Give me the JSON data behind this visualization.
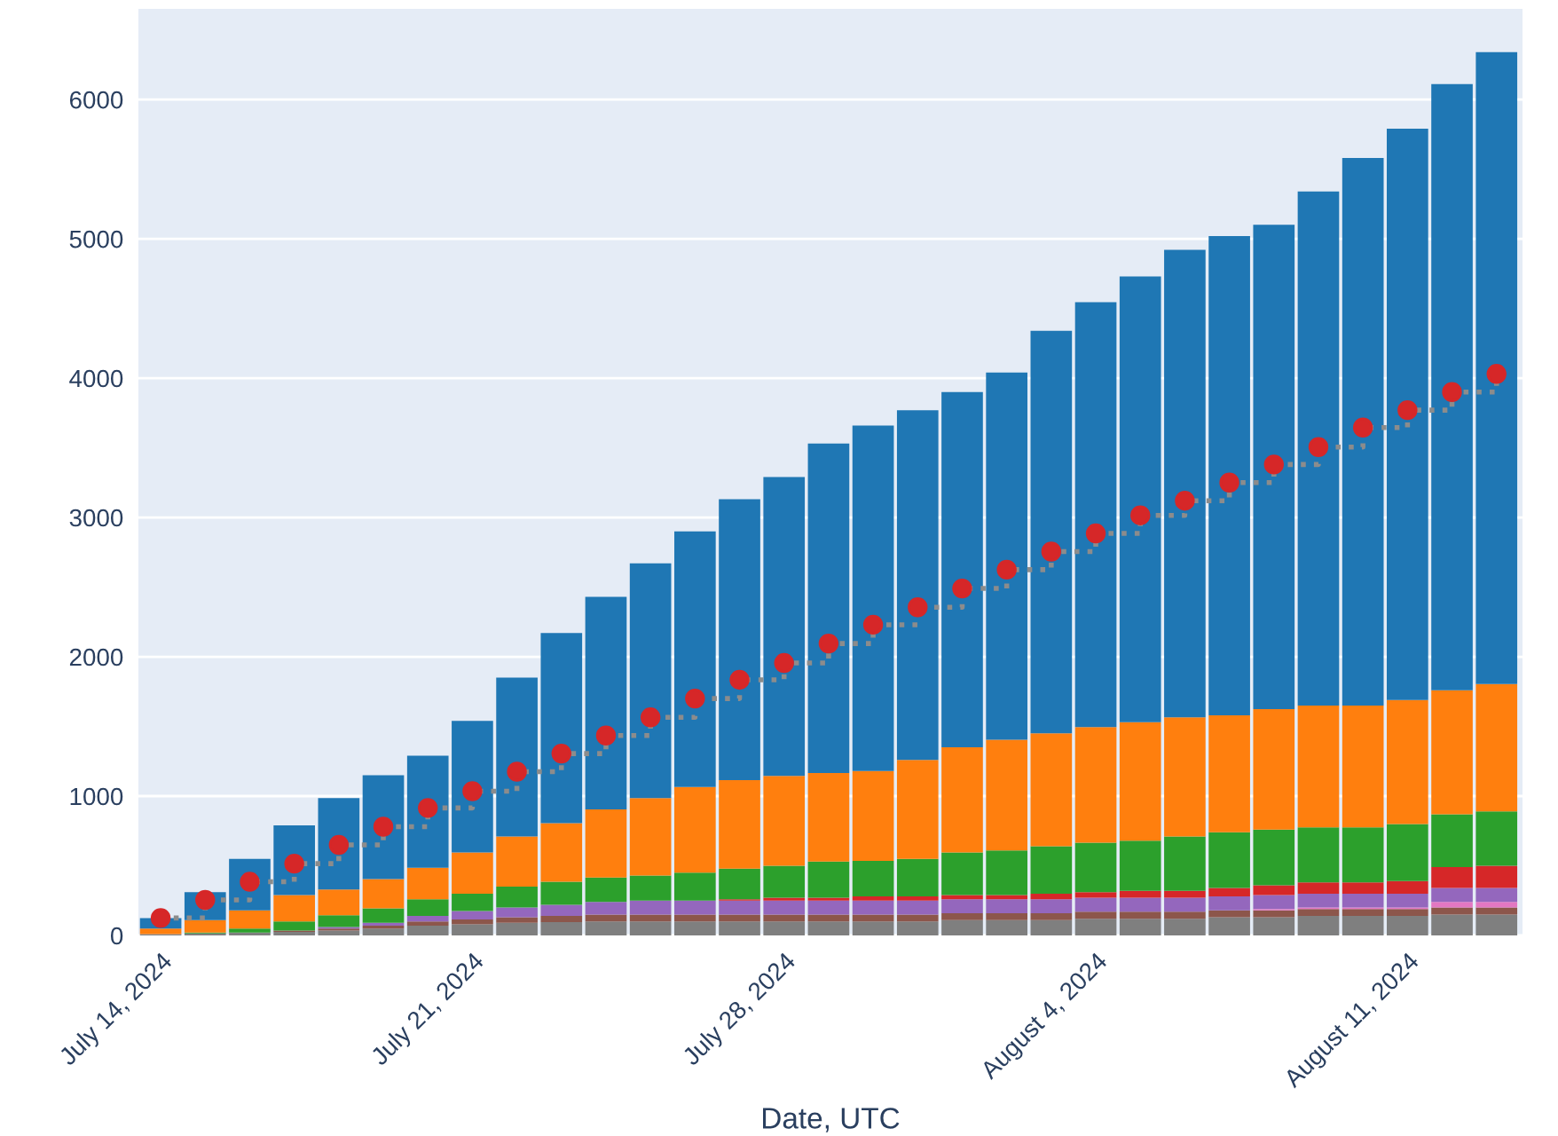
{
  "chart_data": {
    "type": "bar",
    "stacked": true,
    "xlabel": "Date, UTC",
    "grid": "y",
    "legend": false,
    "x": [
      "2024-07-14",
      "2024-07-15",
      "2024-07-16",
      "2024-07-17",
      "2024-07-18",
      "2024-07-19",
      "2024-07-20",
      "2024-07-21",
      "2024-07-22",
      "2024-07-23",
      "2024-07-24",
      "2024-07-25",
      "2024-07-26",
      "2024-07-27",
      "2024-07-28",
      "2024-07-29",
      "2024-07-30",
      "2024-07-31",
      "2024-08-01",
      "2024-08-02",
      "2024-08-03",
      "2024-08-04",
      "2024-08-05",
      "2024-08-06",
      "2024-08-07",
      "2024-08-08",
      "2024-08-09",
      "2024-08-10",
      "2024-08-11",
      "2024-08-12",
      "2024-08-13"
    ],
    "xlim": [
      "2024-07-13T12:00",
      "2024-08-13T14:00"
    ],
    "xticks": [
      {
        "value": "2024-07-14",
        "label": "July 14, 2024"
      },
      {
        "value": "2024-07-21",
        "label": "July 21, 2024"
      },
      {
        "value": "2024-07-28",
        "label": "July 28, 2024"
      },
      {
        "value": "2024-08-04",
        "label": "August 4, 2024"
      },
      {
        "value": "2024-08-11",
        "label": "August 11, 2024"
      }
    ],
    "ylim": [
      0,
      6650
    ],
    "yticks": [
      0,
      1000,
      2000,
      3000,
      4000,
      5000,
      6000
    ],
    "series": [
      {
        "color": "#7f7f7f",
        "values": [
          10,
          15,
          20,
          25,
          35,
          50,
          70,
          80,
          90,
          95,
          100,
          100,
          100,
          100,
          100,
          100,
          100,
          100,
          110,
          110,
          110,
          120,
          120,
          120,
          130,
          130,
          140,
          140,
          140,
          150,
          150
        ]
      },
      {
        "color": "#8c564b",
        "values": [
          0,
          0,
          0,
          10,
          15,
          20,
          30,
          35,
          40,
          45,
          50,
          50,
          50,
          50,
          50,
          50,
          50,
          50,
          50,
          50,
          50,
          50,
          50,
          50,
          50,
          50,
          50,
          50,
          50,
          50,
          50
        ]
      },
      {
        "color": "#e377c2",
        "values": [
          0,
          0,
          0,
          0,
          0,
          0,
          0,
          0,
          0,
          0,
          0,
          0,
          0,
          0,
          0,
          0,
          0,
          0,
          0,
          0,
          0,
          0,
          0,
          0,
          0,
          10,
          10,
          10,
          10,
          40,
          40
        ]
      },
      {
        "color": "#9467bd",
        "values": [
          0,
          0,
          0,
          0,
          10,
          20,
          40,
          60,
          70,
          80,
          90,
          100,
          100,
          100,
          100,
          100,
          100,
          100,
          100,
          100,
          100,
          100,
          100,
          100,
          100,
          100,
          100,
          100,
          100,
          100,
          100
        ]
      },
      {
        "color": "#d62728",
        "values": [
          0,
          0,
          0,
          0,
          0,
          0,
          0,
          0,
          0,
          0,
          0,
          0,
          0,
          10,
          20,
          20,
          30,
          30,
          30,
          30,
          40,
          40,
          50,
          50,
          60,
          70,
          80,
          80,
          90,
          150,
          160
        ]
      },
      {
        "color": "#2ca02c",
        "values": [
          0,
          5,
          30,
          65,
          85,
          105,
          120,
          125,
          150,
          165,
          175,
          180,
          200,
          220,
          230,
          260,
          255,
          270,
          305,
          320,
          340,
          355,
          360,
          390,
          400,
          400,
          395,
          395,
          410,
          380,
          390
        ]
      },
      {
        "color": "#ff7f0e",
        "values": [
          40,
          90,
          130,
          190,
          185,
          210,
          225,
          295,
          360,
          420,
          490,
          555,
          615,
          635,
          645,
          635,
          645,
          710,
          755,
          795,
          810,
          830,
          850,
          855,
          840,
          865,
          875,
          875,
          890,
          890,
          915
        ]
      },
      {
        "color": "#1f77b4",
        "values": [
          75,
          200,
          370,
          500,
          655,
          745,
          805,
          945,
          1140,
          1365,
          1525,
          1685,
          1835,
          2015,
          2145,
          2365,
          2480,
          2510,
          2550,
          2635,
          2890,
          3050,
          3200,
          3355,
          3440,
          3475,
          3690,
          3930,
          4100,
          4350,
          4535
        ]
      },
      {
        "type": "step",
        "color": "#8c8c8c",
        "line_style": "dotted",
        "marker": "none",
        "values": [
          125,
          255,
          385,
          515,
          650,
          780,
          915,
          1035,
          1175,
          1305,
          1435,
          1565,
          1700,
          1835,
          1955,
          2095,
          2230,
          2355,
          2490,
          2625,
          2755,
          2885,
          3015,
          3120,
          3250,
          3380,
          3505,
          3645,
          3770,
          3900,
          4030
        ]
      },
      {
        "type": "scatter",
        "color": "#d62728",
        "marker": "circle",
        "values": [
          125,
          255,
          385,
          515,
          650,
          780,
          915,
          1035,
          1175,
          1305,
          1435,
          1565,
          1700,
          1835,
          1955,
          2095,
          2230,
          2355,
          2490,
          2625,
          2755,
          2885,
          3015,
          3120,
          3250,
          3380,
          3505,
          3645,
          3770,
          3900,
          4030
        ]
      }
    ]
  }
}
